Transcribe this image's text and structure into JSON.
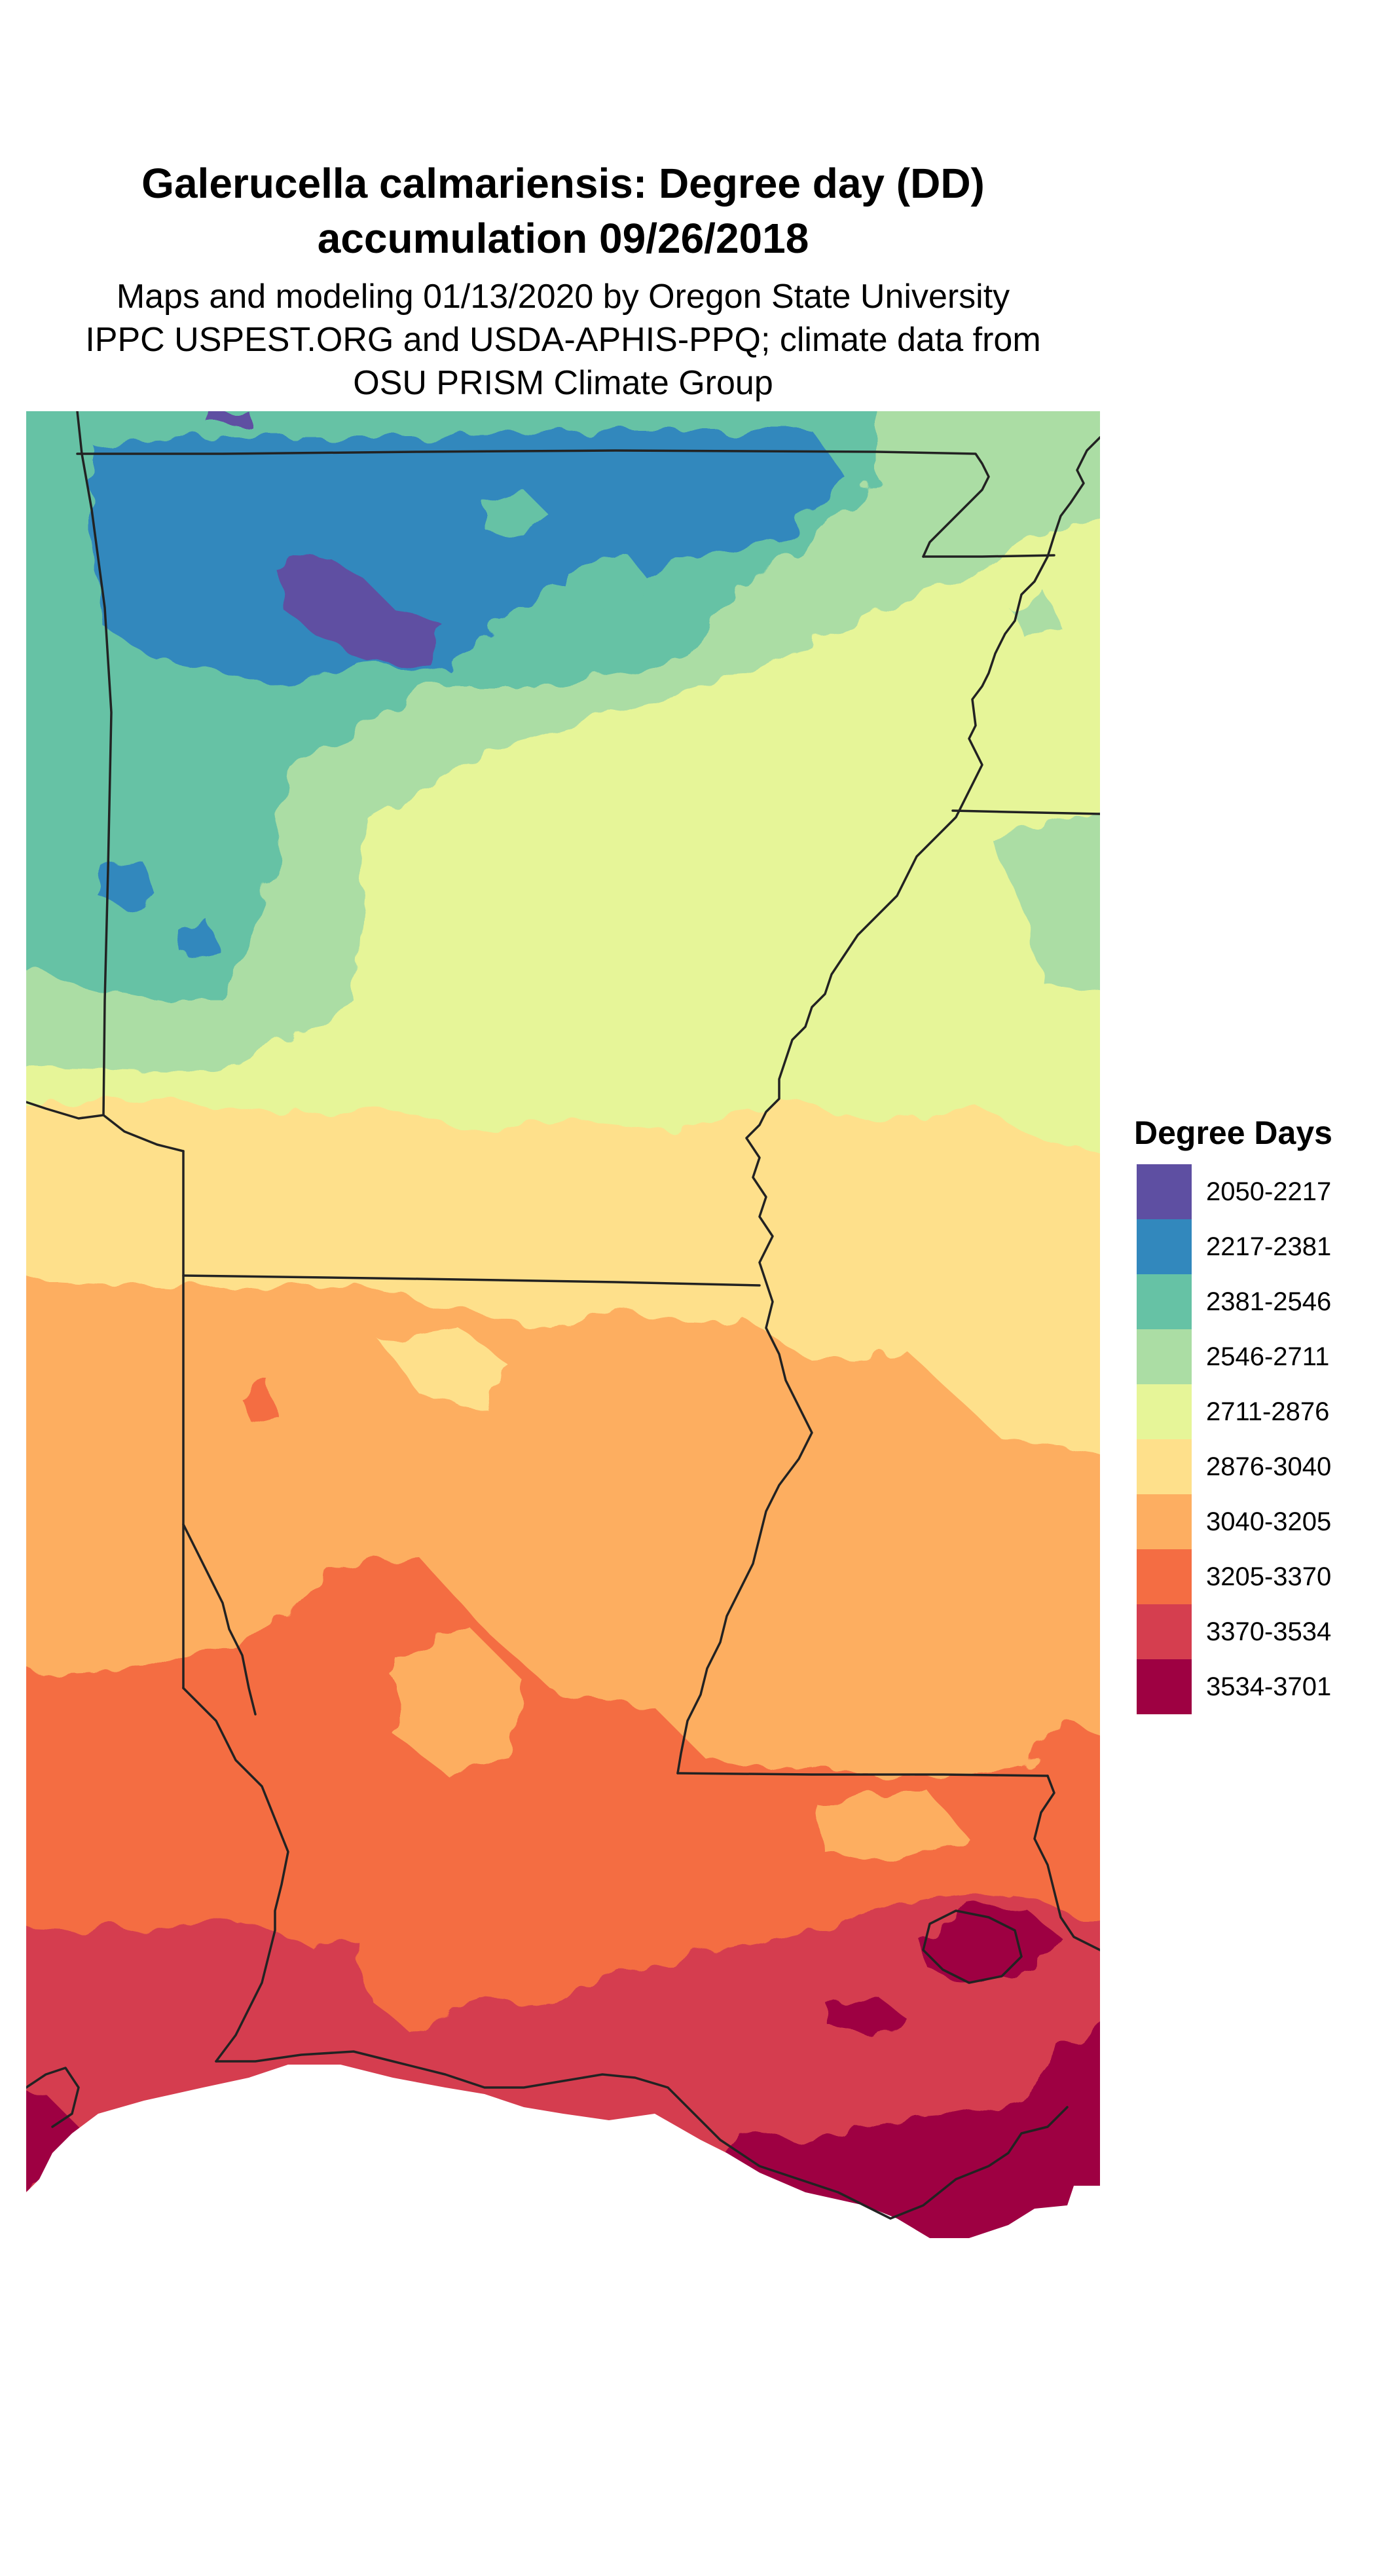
{
  "title": {
    "line1": "Galerucella calmariensis: Degree day (DD)",
    "line2": "accumulation 09/26/2018"
  },
  "subtitle": {
    "line1": "Maps and modeling 01/13/2020 by Oregon State University",
    "line2": "IPPC USPEST.ORG and USDA-APHIS-PPQ; climate data from",
    "line3": "OSU PRISM Climate Group"
  },
  "legend": {
    "title": "Degree Days",
    "items": [
      {
        "label": "2050-2217",
        "color": "#5e4fa2"
      },
      {
        "label": "2217-2381",
        "color": "#3288bd"
      },
      {
        "label": "2381-2546",
        "color": "#66c2a5"
      },
      {
        "label": "2546-2711",
        "color": "#abdda4"
      },
      {
        "label": "2711-2876",
        "color": "#e6f598"
      },
      {
        "label": "2876-3040",
        "color": "#fee08b"
      },
      {
        "label": "3040-3205",
        "color": "#fdae61"
      },
      {
        "label": "3205-3370",
        "color": "#f46d43"
      },
      {
        "label": "3370-3534",
        "color": "#d53e4f"
      },
      {
        "label": "3534-3701",
        "color": "#9e0142"
      }
    ]
  },
  "map": {
    "boundary_color": "#222222",
    "background_color": "#ffffff"
  }
}
